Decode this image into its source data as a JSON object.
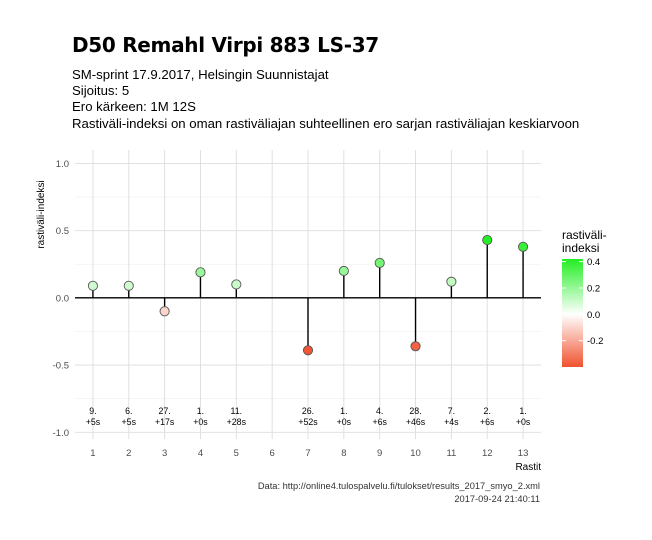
{
  "header": {
    "title": "D50 Remahl Virpi 883 LS-37",
    "subtitle_lines": [
      "SM-sprint 17.9.2017, Helsingin Suunnistajat",
      "Sijoitus: 5",
      "Ero kärkeen: 1M 12S",
      "Rastiväli-indeksi on oman rastiväliajan suhteellinen ero sarjan rastiväliajan keskiarvoon"
    ]
  },
  "caption": {
    "source": "Data: http://online4.tulospalvelu.fi/tulokset/results_2017_smyo_2.xml",
    "timestamp": "2017-09-24 21:40:11"
  },
  "chart_data": {
    "type": "lollipop",
    "xlabel": "Rastit",
    "ylabel": "rastiväli-indeksi",
    "xlim": [
      0.5,
      13.5
    ],
    "ylim": [
      -1.05,
      1.1
    ],
    "x_ticks": [
      1,
      2,
      3,
      4,
      5,
      6,
      7,
      8,
      9,
      10,
      11,
      12,
      13
    ],
    "y_ticks": [
      1.0,
      0.5,
      0.0,
      -0.5,
      -1.0
    ],
    "y_tick_labels": [
      "1.0",
      "0.5",
      "0.0",
      "-0.5",
      "-1.0"
    ],
    "grid": true,
    "points": [
      {
        "x": 1,
        "y": 0.09,
        "rank": "9.",
        "diff": "+5s"
      },
      {
        "x": 2,
        "y": 0.09,
        "rank": "6.",
        "diff": "+5s"
      },
      {
        "x": 3,
        "y": -0.1,
        "rank": "27.",
        "diff": "+17s"
      },
      {
        "x": 4,
        "y": 0.19,
        "rank": "1.",
        "diff": "+0s"
      },
      {
        "x": 5,
        "y": 0.1,
        "rank": "11.",
        "diff": "+28s"
      },
      {
        "x": 7,
        "y": -0.39,
        "rank": "26.",
        "diff": "+52s"
      },
      {
        "x": 8,
        "y": 0.2,
        "rank": "1.",
        "diff": "+0s"
      },
      {
        "x": 9,
        "y": 0.26,
        "rank": "4.",
        "diff": "+6s"
      },
      {
        "x": 10,
        "y": -0.36,
        "rank": "28.",
        "diff": "+46s"
      },
      {
        "x": 11,
        "y": 0.12,
        "rank": "7.",
        "diff": "+4s"
      },
      {
        "x": 12,
        "y": 0.43,
        "rank": "2.",
        "diff": "+6s"
      },
      {
        "x": 13,
        "y": 0.38,
        "rank": "1.",
        "diff": "+0s"
      }
    ],
    "legend": {
      "title_lines": [
        "rastiväli-",
        "indeksi"
      ],
      "position": "right",
      "range": [
        -0.4,
        0.42
      ],
      "ticks": [
        0.4,
        0.2,
        0.0,
        -0.2
      ],
      "tick_labels": [
        "0.4",
        "0.2",
        "0.0",
        "-0.2"
      ],
      "colors": {
        "low": "#f0522f",
        "mid": "#ffffff",
        "high": "#22ee22"
      }
    },
    "colors": {
      "grid_major": "#dddddd",
      "grid_minor": "#efefef",
      "axis_text": "#4d4d4d",
      "stem": "#000000"
    }
  }
}
